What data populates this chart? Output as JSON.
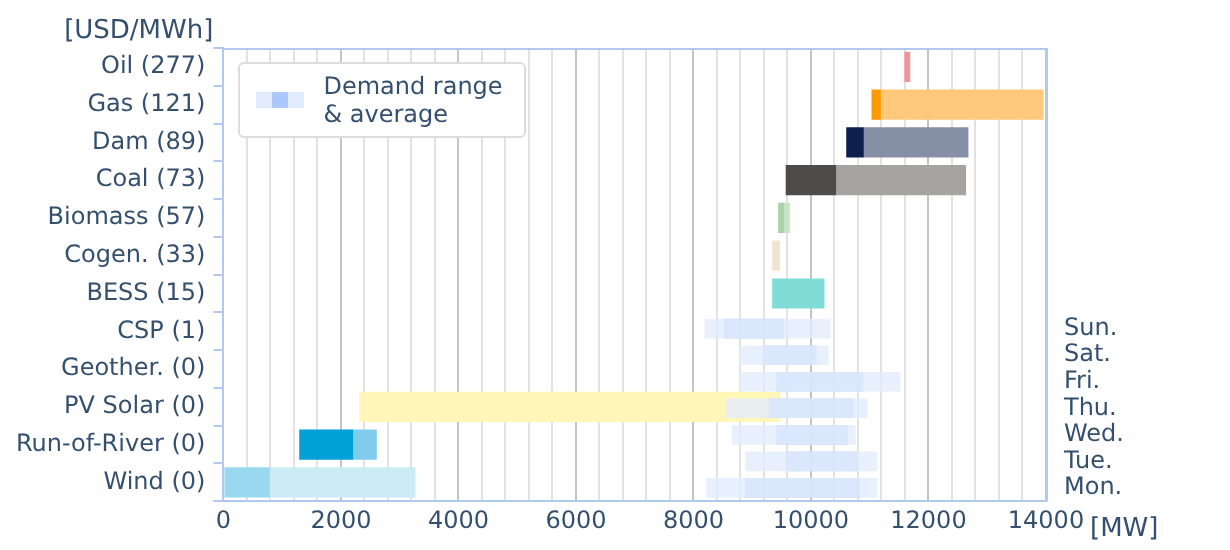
{
  "chart_data": [
    {
      "type": "bar",
      "orientation": "horizontal",
      "ylabel": "[USD/MWh]",
      "xlabel": "[MW]",
      "grid": "x",
      "categories": [
        "Oil (277)",
        "Gas (121)",
        "Dam (89)",
        "Coal (73)",
        "Biomass (57)",
        "Cogen. (33)",
        "BESS (15)",
        "CSP (1)",
        "Geother. (0)",
        "PV Solar (0)",
        "Run-of-River (0)",
        "Wind (0)"
      ],
      "xlim": [
        0,
        14000
      ],
      "xticks": [
        0,
        {
          "value": 400,
          "label": null
        },
        {
          "value": 800,
          "label": null
        },
        {
          "value": 1200,
          "label": null
        },
        {
          "value": 1600,
          "label": null
        },
        2000,
        {
          "value": 2400,
          "label": null
        },
        {
          "value": 2800,
          "label": null
        },
        {
          "value": 3200,
          "label": null
        },
        {
          "value": 3600,
          "label": null
        },
        4000,
        {
          "value": 4400,
          "label": null
        },
        {
          "value": 4800,
          "label": null
        },
        {
          "value": 5200,
          "label": null
        },
        {
          "value": 5600,
          "label": null
        },
        6000,
        {
          "value": 6400,
          "label": null
        },
        {
          "value": 6800,
          "label": null
        },
        {
          "value": 7200,
          "label": null
        },
        {
          "value": 7600,
          "label": null
        },
        8000,
        {
          "value": 8400,
          "label": null
        },
        {
          "value": 8800,
          "label": null
        },
        {
          "value": 9200,
          "label": null
        },
        {
          "value": 9600,
          "label": null
        },
        10000,
        {
          "value": 10400,
          "label": null
        },
        {
          "value": 10800,
          "label": null
        },
        {
          "value": 11200,
          "label": null
        },
        {
          "value": 11600,
          "label": null
        },
        12000,
        {
          "value": 12400,
          "label": null
        },
        {
          "value": 12800,
          "label": null
        },
        {
          "value": 13200,
          "label": null
        },
        {
          "value": 13600,
          "label": null
        },
        14000
      ],
      "series": [
        {
          "colors": [
            "#f0949a",
            "#ff9900",
            "#0f1f4d",
            "#4d4c48",
            "#a6d4a8",
            "#f0e3cf",
            "#7fdcd6",
            null,
            null,
            "#fff6b8",
            "#00a0d8",
            "#99d9ef"
          ],
          "base": [
            11590,
            11030,
            10600,
            9570,
            9440,
            9340,
            9340,
            null,
            null,
            2310,
            1290,
            0
          ],
          "values": [
            100,
            160,
            300,
            860,
            110,
            130,
            890,
            null,
            null,
            7170,
            920,
            790
          ]
        },
        {
          "colors": [
            null,
            "#ffc87a",
            "#8590a6",
            "#a5a4a2",
            "#c7e5c6",
            null,
            null,
            null,
            null,
            null,
            "#80ccec",
            "#cdebf5"
          ],
          "base": [
            null,
            11190,
            10900,
            10430,
            9550,
            null,
            null,
            null,
            null,
            null,
            2210,
            790
          ],
          "values": [
            null,
            2770,
            1780,
            2210,
            90,
            null,
            null,
            null,
            null,
            null,
            400,
            2480
          ]
        }
      ]
    },
    {
      "type": "bar",
      "orientation": "horizontal",
      "tick_labels": "y",
      "legend": "top left",
      "categories": [
        "Sun.",
        "Sat.",
        "Fri.",
        "Thu.",
        "Wed.",
        "Tue.",
        "Mon."
      ],
      "xlim": [
        0,
        14000
      ],
      "series": [
        {
          "color": "#e3ecfd",
          "base": [
            8190,
            8780,
            8780,
            8550,
            8650,
            8880,
            8220
          ],
          "values": [
            2140,
            1520,
            2740,
            2410,
            2110,
            2250,
            2910
          ]
        },
        {
          "name": "Demand range & average",
          "color": "#aac8fb",
          "base": [
            8520,
            9180,
            9410,
            9280,
            9410,
            9570,
            8880
          ],
          "values": [
            1020,
            920,
            1480,
            1450,
            1220,
            1230,
            1950
          ]
        }
      ]
    }
  ]
}
